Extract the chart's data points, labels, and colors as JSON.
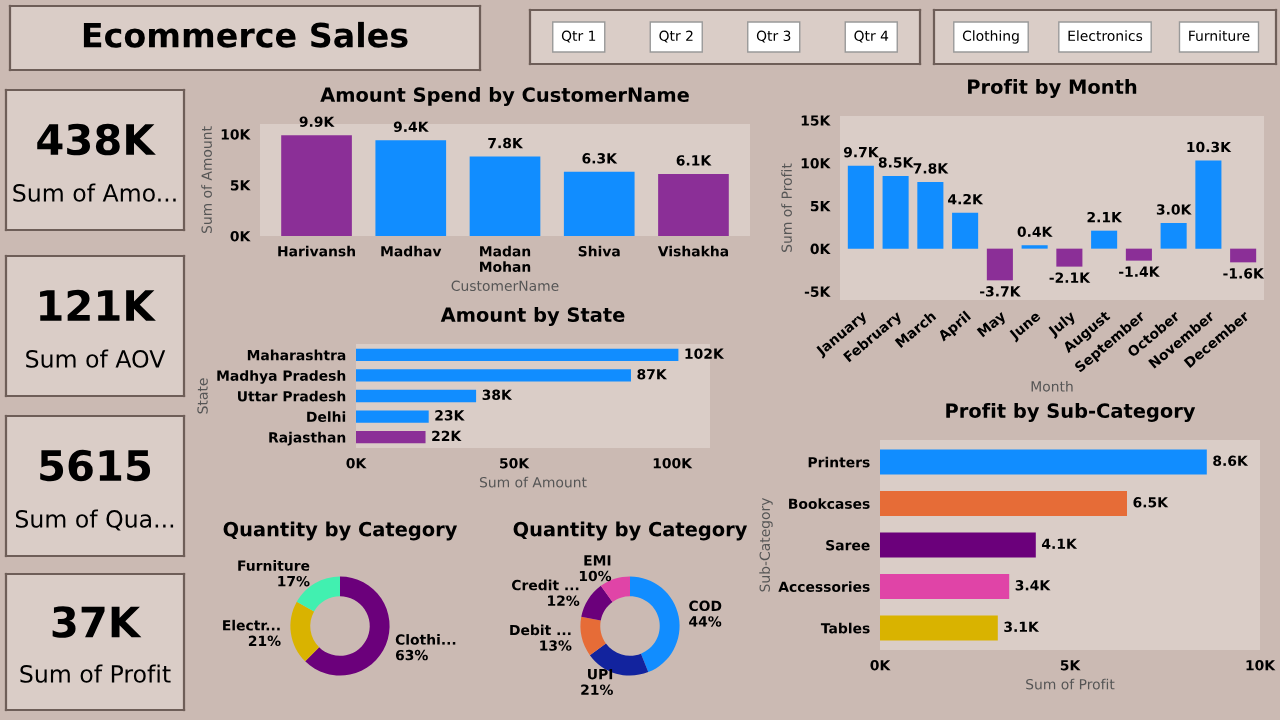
{
  "chart_data": [
    {
      "type": "other",
      "title": "Ecommerce Sales"
    },
    {
      "type": "other",
      "annotations": [
        "Qtr 1",
        "Qtr 2",
        "Qtr 3",
        "Qtr 4"
      ]
    },
    {
      "type": "other",
      "annotations": [
        "Clothing",
        "Electronics",
        "Furniture"
      ]
    },
    {
      "type": "other",
      "title": "438K",
      "subtitle": "Sum of Amo..."
    },
    {
      "type": "other",
      "title": "121K",
      "subtitle": "Sum of AOV"
    },
    {
      "type": "other",
      "title": "5615",
      "subtitle": "Sum of Qua..."
    },
    {
      "type": "other",
      "title": "37K",
      "subtitle": "Sum of Profit"
    },
    {
      "type": "bar",
      "title": "Amount Spend by CustomerName",
      "xlabel": "CustomerName",
      "ylabel": "Sum of Amount",
      "categories": [
        "Harivansh",
        "Madhav",
        "Madan\nMohan",
        "Shiva",
        "Vishakha"
      ],
      "values": [
        9900,
        9400,
        7800,
        6300,
        6100
      ],
      "colors": [
        "#8b2f97",
        "#118dff",
        "#118dff",
        "#118dff",
        "#8b2f97"
      ],
      "value_labels": [
        "9.9K",
        "9.4K",
        "7.8K",
        "6.3K",
        "6.1K"
      ],
      "ylim": [
        0,
        11000
      ],
      "yticks": [
        {
          "value": 0,
          "label": "0K"
        },
        {
          "value": 5000,
          "label": "5K"
        },
        {
          "value": 10000,
          "label": "10K"
        }
      ]
    },
    {
      "type": "bar",
      "orientation": "horizontal",
      "title": "Amount by State",
      "xlabel": "Sum of Amount",
      "ylabel": "State",
      "categories": [
        "Maharashtra",
        "Madhya Pradesh",
        "Uttar Pradesh",
        "Delhi",
        "Rajasthan"
      ],
      "values": [
        102000,
        87000,
        38000,
        23000,
        22000
      ],
      "colors": [
        "#118dff",
        "#118dff",
        "#118dff",
        "#118dff",
        "#8b2f97"
      ],
      "value_labels": [
        "102K",
        "87K",
        "38K",
        "23K",
        "22K"
      ],
      "xlim": [
        0,
        112000
      ],
      "xticks": [
        {
          "value": 0,
          "label": "0K"
        },
        {
          "value": 50000,
          "label": "50K"
        },
        {
          "value": 100000,
          "label": "100K"
        }
      ]
    },
    {
      "type": "bar",
      "title": "Profit by Month",
      "xlabel": "Month",
      "ylabel": "Sum of Profit",
      "categories": [
        "January",
        "February",
        "March",
        "April",
        "May",
        "June",
        "July",
        "August",
        "September",
        "October",
        "November",
        "December"
      ],
      "values": [
        9700,
        8500,
        7800,
        4200,
        -3700,
        400,
        -2100,
        2100,
        -1400,
        3000,
        10300,
        -1600
      ],
      "colors": [
        "#118dff",
        "#118dff",
        "#118dff",
        "#118dff",
        "#8b2f97",
        "#118dff",
        "#8b2f97",
        "#118dff",
        "#8b2f97",
        "#118dff",
        "#118dff",
        "#8b2f97"
      ],
      "value_labels": [
        "9.7K",
        "8.5K",
        "7.8K",
        "4.2K",
        "-3.7K",
        "0.4K",
        "-2.1K",
        "2.1K",
        "-1.4K",
        "3.0K",
        "10.3K",
        "-1.6K"
      ],
      "ylim": [
        -6000,
        15500
      ],
      "yticks": [
        {
          "value": -5000,
          "label": "-5K"
        },
        {
          "value": 0,
          "label": "0K"
        },
        {
          "value": 5000,
          "label": "5K"
        },
        {
          "value": 10000,
          "label": "10K"
        },
        {
          "value": 15000,
          "label": "15K"
        }
      ]
    },
    {
      "type": "bar",
      "orientation": "horizontal",
      "title": "Profit by Sub-Category",
      "xlabel": "Sum of Profit",
      "ylabel": "Sub-Category",
      "categories": [
        "Printers",
        "Bookcases",
        "Saree",
        "Accessories",
        "Tables"
      ],
      "values": [
        8600,
        6500,
        4100,
        3400,
        3100
      ],
      "colors": [
        "#118dff",
        "#e66c37",
        "#6b007b",
        "#e044a7",
        "#d9b300"
      ],
      "value_labels": [
        "8.6K",
        "6.5K",
        "4.1K",
        "3.4K",
        "3.1K"
      ],
      "xlim": [
        0,
        10000
      ],
      "xticks": [
        {
          "value": 0,
          "label": "0K"
        },
        {
          "value": 5000,
          "label": "5K"
        },
        {
          "value": 10000,
          "label": "10K"
        }
      ]
    },
    {
      "type": "donut",
      "title": "Quantity by Category",
      "categories": [
        "Clothi...",
        "Electr...",
        "Furniture"
      ],
      "values": [
        63,
        21,
        17
      ],
      "colors": [
        "#6b007b",
        "#d9b300",
        "#41f0b0"
      ],
      "value_labels": [
        "63%",
        "21%",
        "17%"
      ]
    },
    {
      "type": "donut",
      "title": "Quantity by Category",
      "categories": [
        "COD",
        "UPI",
        "Debit ...",
        "Credit ...",
        "EMI"
      ],
      "values": [
        44,
        21,
        13,
        12,
        10
      ],
      "colors": [
        "#118dff",
        "#12239e",
        "#e66c37",
        "#6b007b",
        "#e044a7"
      ],
      "value_labels": [
        "44%",
        "21%",
        "13%",
        "12%",
        "10%"
      ]
    }
  ]
}
